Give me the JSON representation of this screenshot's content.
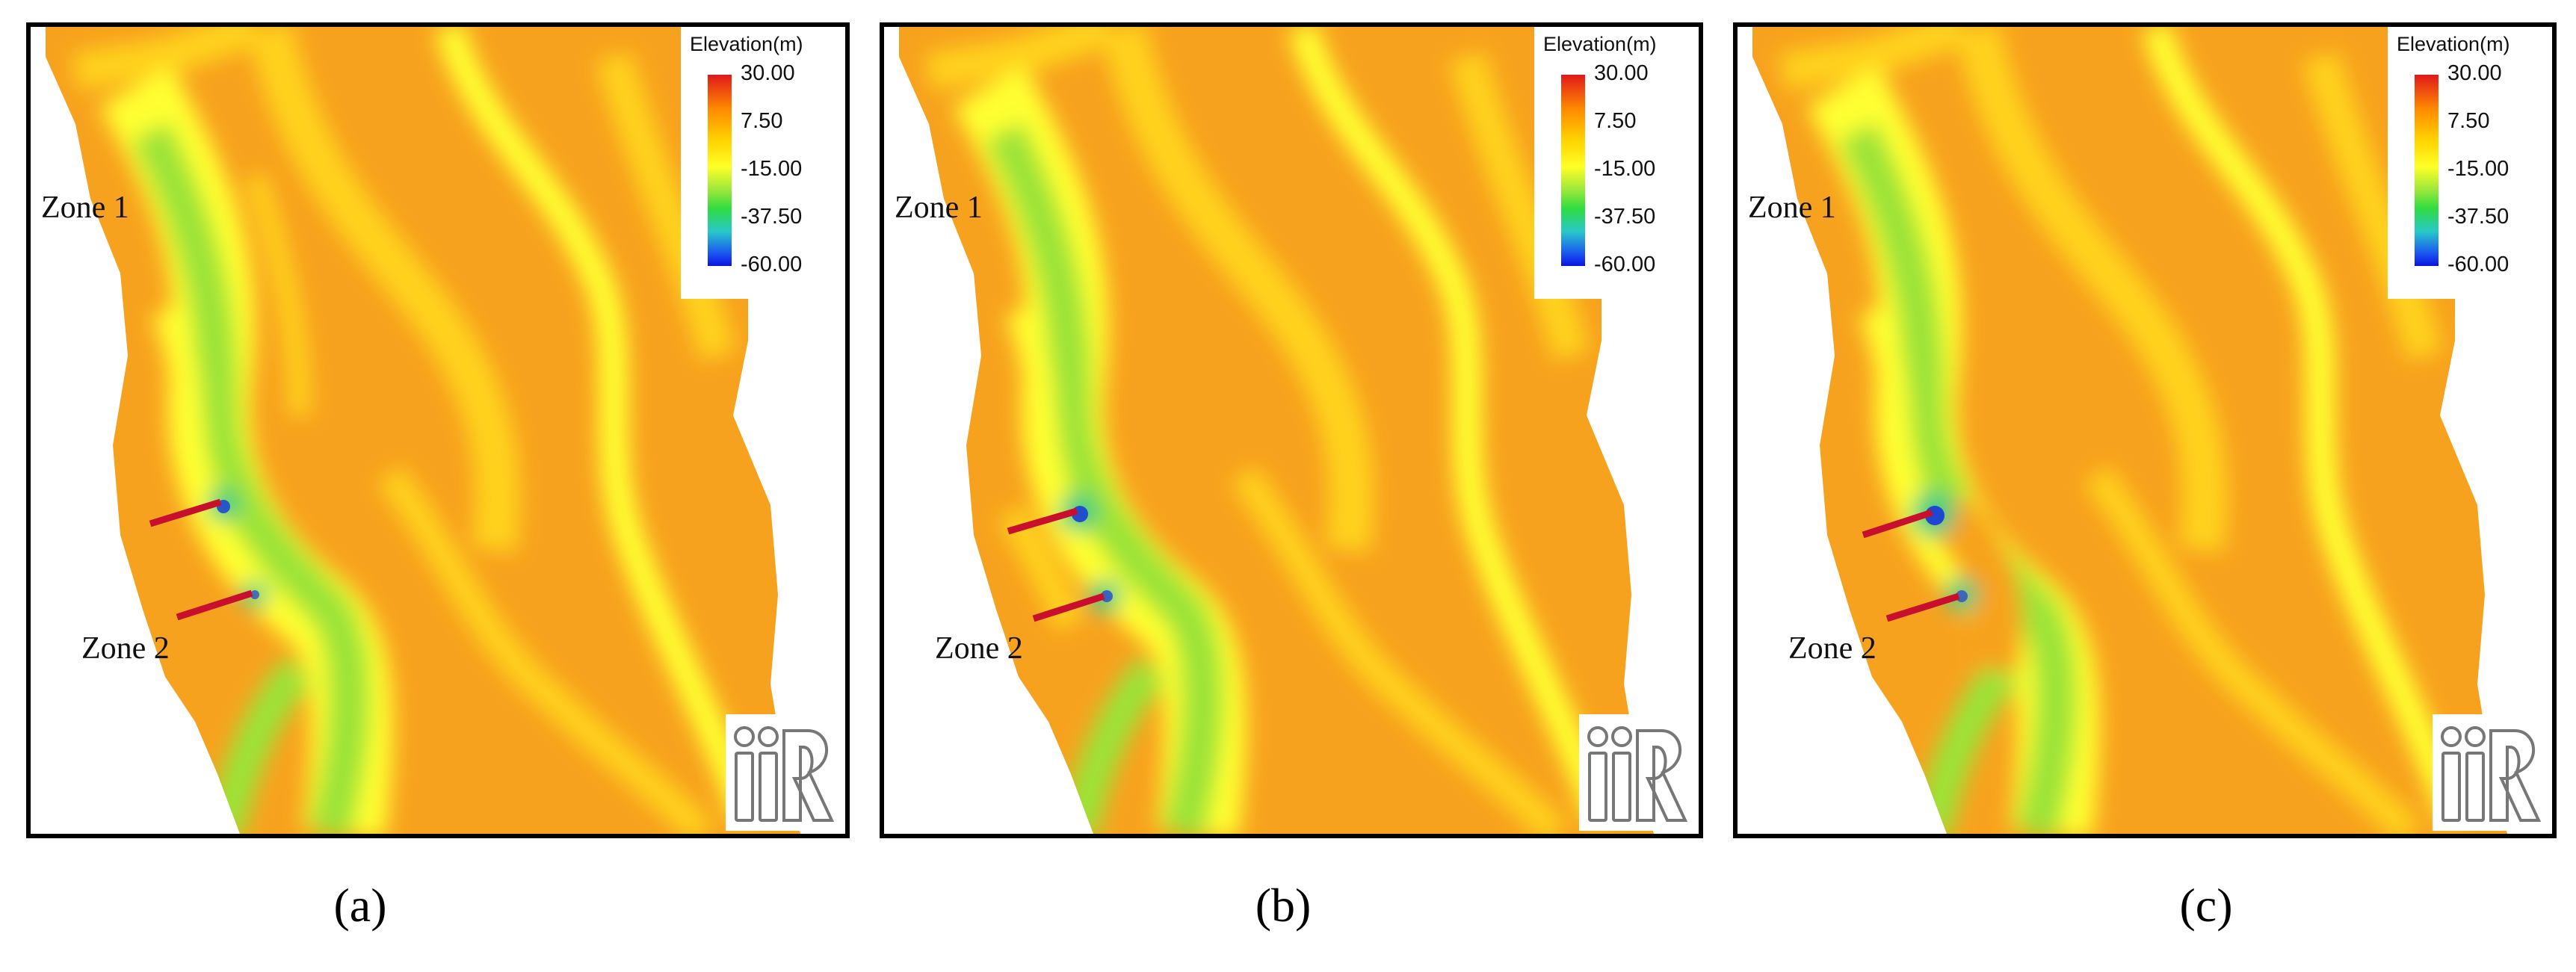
{
  "panels": [
    {
      "id": "a",
      "caption": "(a)",
      "zone1": "Zone 1",
      "zone2": "Zone 2"
    },
    {
      "id": "b",
      "caption": "(b)",
      "zone1": "Zone 1",
      "zone2": "Zone 2"
    },
    {
      "id": "c",
      "caption": "(c)",
      "zone1": "Zone 1",
      "zone2": "Zone 2"
    }
  ],
  "legend": {
    "title": "Elevation(m)",
    "ticks": [
      "30.00",
      "7.50",
      "-15.00",
      "-37.50",
      "-60.00"
    ],
    "colors": [
      "#e0191a",
      "#ff8a00",
      "#ffff26",
      "#30dc40",
      "#0a14e0"
    ]
  },
  "logo": {
    "icon": "iric-logo-icon"
  },
  "map_colors": {
    "land": "#ffffff",
    "bed_high": "#f7a21e",
    "bed_mid": "#ffd21e",
    "bed_low": "#ffff33",
    "channel": "#9be337",
    "deep": "#33cc88",
    "scour": "#1a3fd6",
    "groyne": "#c8102e"
  }
}
